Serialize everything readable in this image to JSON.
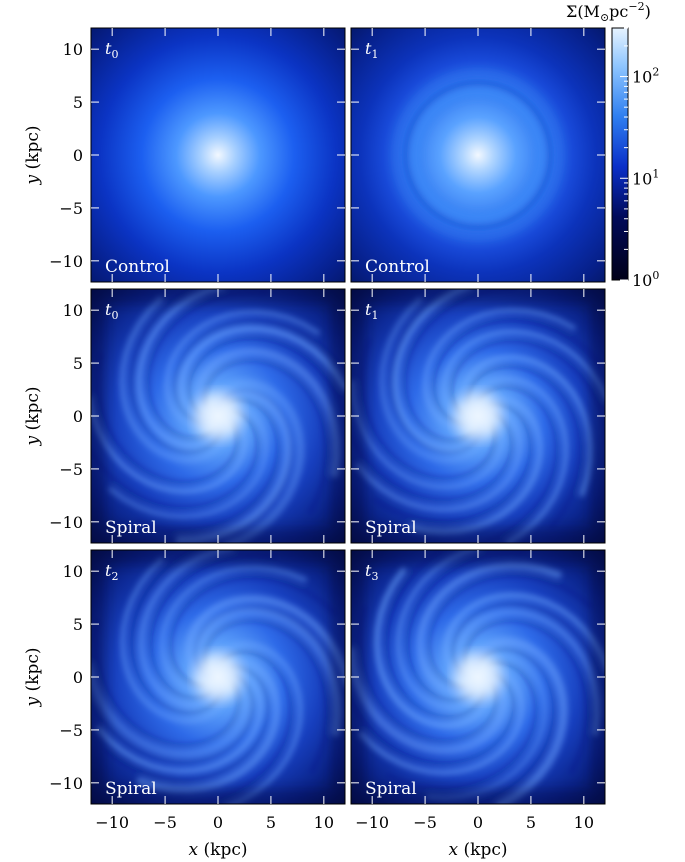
{
  "chart_data": {
    "type": "heatmap",
    "colorbar": {
      "label_prefix": "Σ(M",
      "label_sub": "⊙",
      "label_mid": "pc",
      "label_sup": "−2",
      "label_end": ")",
      "scale": "log",
      "range": [
        1,
        300
      ],
      "ticks": [
        {
          "value": 1,
          "base": "10",
          "exp": "0"
        },
        {
          "value": 10,
          "base": "10",
          "exp": "1"
        },
        {
          "value": 100,
          "base": "10",
          "exp": "2"
        }
      ],
      "colors": [
        "#000018",
        "#000a5a",
        "#0a2fc8",
        "#2f7ff0",
        "#8fc6ff",
        "#e6f3ff"
      ]
    },
    "x_axis": {
      "label_var": "x",
      "label_unit": " (kpc)",
      "range": [
        -12,
        12
      ],
      "ticks": [
        -10,
        -5,
        0,
        5,
        10
      ]
    },
    "y_axis": {
      "label_var": "y",
      "label_unit": " (kpc)",
      "range": [
        -12,
        12
      ],
      "ticks": [
        -10,
        -5,
        0,
        5,
        10
      ]
    },
    "panels": [
      {
        "time_var": "t",
        "time_sub": "0",
        "label": "Control",
        "model": "control",
        "row": 0,
        "col": 0
      },
      {
        "time_var": "t",
        "time_sub": "1",
        "label": "Control",
        "model": "control",
        "row": 0,
        "col": 1
      },
      {
        "time_var": "t",
        "time_sub": "0",
        "label": "Spiral",
        "model": "spiral",
        "row": 1,
        "col": 0
      },
      {
        "time_var": "t",
        "time_sub": "1",
        "label": "Spiral",
        "model": "spiral",
        "row": 1,
        "col": 1
      },
      {
        "time_var": "t",
        "time_sub": "2",
        "label": "Spiral",
        "model": "spiral",
        "row": 2,
        "col": 0
      },
      {
        "time_var": "t",
        "time_sub": "3",
        "label": "Spiral",
        "model": "spiral",
        "row": 2,
        "col": 1
      }
    ]
  }
}
